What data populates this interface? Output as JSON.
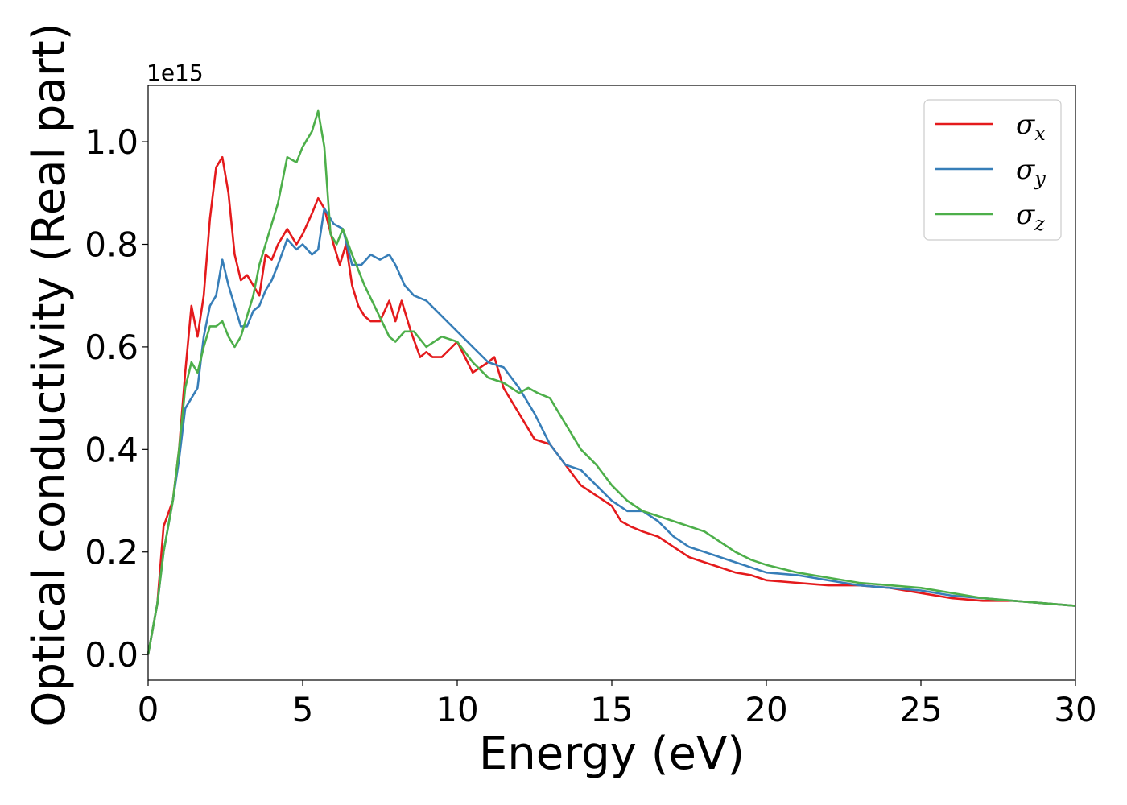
{
  "chart_data": {
    "type": "line",
    "xlabel": "Energy (eV)",
    "ylabel": "Optical conductivity (Real part)",
    "y_offset_text": "1e15",
    "xlim": [
      0,
      30
    ],
    "ylim": [
      -0.05,
      1.11
    ],
    "x_ticks": [
      0,
      5,
      10,
      15,
      20,
      25,
      30
    ],
    "x_tick_labels": [
      "0",
      "5",
      "10",
      "15",
      "20",
      "25",
      "30"
    ],
    "y_ticks": [
      0.0,
      0.2,
      0.4,
      0.6,
      0.8,
      1.0
    ],
    "y_tick_labels": [
      "0.0",
      "0.2",
      "0.4",
      "0.6",
      "0.8",
      "1.0"
    ],
    "grid": false,
    "legend_position": "top-right",
    "series": [
      {
        "name": "σ",
        "subscript": "x",
        "color": "#e41a1c",
        "x": [
          0,
          0.3,
          0.5,
          0.8,
          1.0,
          1.2,
          1.4,
          1.6,
          1.8,
          2.0,
          2.2,
          2.4,
          2.6,
          2.8,
          3.0,
          3.2,
          3.4,
          3.6,
          3.8,
          4.0,
          4.2,
          4.5,
          4.8,
          5.0,
          5.3,
          5.5,
          5.7,
          6.0,
          6.2,
          6.4,
          6.6,
          6.8,
          7.0,
          7.2,
          7.5,
          7.8,
          8.0,
          8.2,
          8.5,
          8.8,
          9.0,
          9.2,
          9.5,
          10.0,
          10.5,
          11.0,
          11.2,
          11.5,
          12.0,
          12.5,
          13.0,
          13.5,
          14.0,
          14.5,
          15.0,
          15.3,
          15.6,
          16.0,
          16.5,
          17.0,
          17.5,
          18.0,
          18.5,
          19.0,
          19.5,
          20.0,
          21.0,
          22.0,
          23.0,
          24.0,
          25.0,
          26.0,
          27.0,
          28.0,
          29.0,
          30.0
        ],
        "values": [
          0.0,
          0.1,
          0.25,
          0.3,
          0.4,
          0.55,
          0.68,
          0.62,
          0.7,
          0.85,
          0.95,
          0.97,
          0.9,
          0.78,
          0.73,
          0.74,
          0.72,
          0.7,
          0.78,
          0.77,
          0.8,
          0.83,
          0.8,
          0.82,
          0.86,
          0.89,
          0.87,
          0.8,
          0.76,
          0.8,
          0.72,
          0.68,
          0.66,
          0.65,
          0.65,
          0.69,
          0.65,
          0.69,
          0.63,
          0.58,
          0.59,
          0.58,
          0.58,
          0.61,
          0.55,
          0.57,
          0.58,
          0.52,
          0.47,
          0.42,
          0.41,
          0.37,
          0.33,
          0.31,
          0.29,
          0.26,
          0.25,
          0.24,
          0.23,
          0.21,
          0.19,
          0.18,
          0.17,
          0.16,
          0.155,
          0.145,
          0.14,
          0.135,
          0.135,
          0.13,
          0.12,
          0.11,
          0.105,
          0.105,
          0.1,
          0.095
        ]
      },
      {
        "name": "σ",
        "subscript": "y",
        "color": "#377eb8",
        "x": [
          0,
          0.3,
          0.5,
          0.8,
          1.0,
          1.2,
          1.4,
          1.6,
          1.8,
          2.0,
          2.2,
          2.4,
          2.6,
          2.8,
          3.0,
          3.2,
          3.4,
          3.6,
          3.8,
          4.0,
          4.2,
          4.5,
          4.8,
          5.0,
          5.3,
          5.5,
          5.7,
          6.0,
          6.3,
          6.6,
          6.9,
          7.2,
          7.5,
          7.8,
          8.0,
          8.3,
          8.6,
          9.0,
          9.5,
          10.0,
          10.5,
          11.0,
          11.5,
          12.0,
          12.5,
          13.0,
          13.5,
          14.0,
          14.5,
          15.0,
          15.5,
          16.0,
          16.5,
          17.0,
          17.5,
          18.0,
          18.5,
          19.0,
          19.5,
          20.0,
          21.0,
          22.0,
          23.0,
          24.0,
          25.0,
          26.0,
          27.0,
          28.0,
          29.0,
          30.0
        ],
        "values": [
          0.0,
          0.1,
          0.2,
          0.3,
          0.38,
          0.48,
          0.5,
          0.52,
          0.62,
          0.68,
          0.7,
          0.77,
          0.72,
          0.68,
          0.64,
          0.64,
          0.67,
          0.68,
          0.71,
          0.73,
          0.76,
          0.81,
          0.79,
          0.8,
          0.78,
          0.79,
          0.87,
          0.84,
          0.83,
          0.76,
          0.76,
          0.78,
          0.77,
          0.78,
          0.76,
          0.72,
          0.7,
          0.69,
          0.66,
          0.63,
          0.6,
          0.57,
          0.56,
          0.52,
          0.47,
          0.41,
          0.37,
          0.36,
          0.33,
          0.3,
          0.28,
          0.28,
          0.26,
          0.23,
          0.21,
          0.2,
          0.19,
          0.18,
          0.17,
          0.16,
          0.155,
          0.145,
          0.135,
          0.13,
          0.125,
          0.115,
          0.11,
          0.105,
          0.1,
          0.095
        ]
      },
      {
        "name": "σ",
        "subscript": "z",
        "color": "#4daf4a",
        "x": [
          0,
          0.3,
          0.5,
          0.8,
          1.0,
          1.2,
          1.4,
          1.6,
          1.8,
          2.0,
          2.2,
          2.4,
          2.6,
          2.8,
          3.0,
          3.2,
          3.4,
          3.6,
          3.8,
          4.0,
          4.2,
          4.5,
          4.8,
          5.0,
          5.3,
          5.5,
          5.7,
          5.9,
          6.1,
          6.3,
          6.6,
          7.0,
          7.4,
          7.8,
          8.0,
          8.3,
          8.6,
          9.0,
          9.5,
          10.0,
          10.5,
          11.0,
          11.5,
          12.0,
          12.3,
          12.6,
          13.0,
          13.5,
          14.0,
          14.5,
          15.0,
          15.5,
          16.0,
          16.5,
          17.0,
          17.5,
          18.0,
          18.5,
          19.0,
          19.5,
          20.0,
          21.0,
          22.0,
          23.0,
          24.0,
          25.0,
          26.0,
          27.0,
          28.0,
          29.0,
          30.0
        ],
        "values": [
          0.0,
          0.1,
          0.2,
          0.3,
          0.4,
          0.52,
          0.57,
          0.55,
          0.6,
          0.64,
          0.64,
          0.65,
          0.62,
          0.6,
          0.62,
          0.66,
          0.7,
          0.76,
          0.8,
          0.84,
          0.88,
          0.97,
          0.96,
          0.99,
          1.02,
          1.06,
          0.99,
          0.82,
          0.8,
          0.83,
          0.78,
          0.72,
          0.67,
          0.62,
          0.61,
          0.63,
          0.63,
          0.6,
          0.62,
          0.61,
          0.57,
          0.54,
          0.53,
          0.51,
          0.52,
          0.51,
          0.5,
          0.45,
          0.4,
          0.37,
          0.33,
          0.3,
          0.28,
          0.27,
          0.26,
          0.25,
          0.24,
          0.22,
          0.2,
          0.185,
          0.175,
          0.16,
          0.15,
          0.14,
          0.135,
          0.13,
          0.12,
          0.11,
          0.105,
          0.1,
          0.095
        ]
      }
    ]
  }
}
